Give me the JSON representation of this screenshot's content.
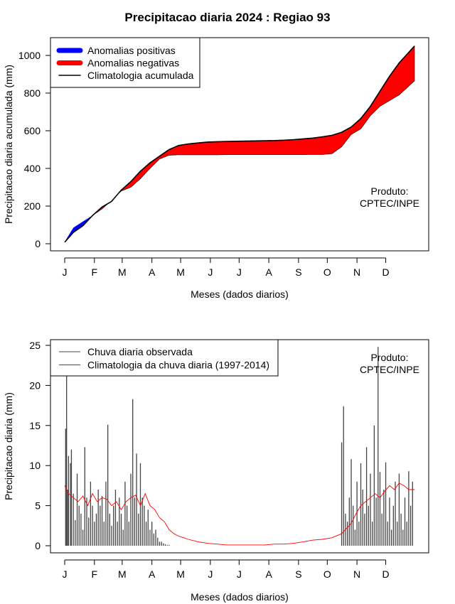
{
  "title": "Precipitacao diaria 2024 : Regiao 93",
  "colors": {
    "positive": "#0000ff",
    "negative": "#ff0000",
    "climatology_cumulative": "#000000",
    "observed_bar": "#444444",
    "climatology_daily": "#ff0000"
  },
  "chart_data": [
    {
      "type": "area",
      "title": "Precipitacao diaria 2024 : Regiao 93",
      "xlabel": "Meses (dados diarios)",
      "ylabel": "Precipitacao diaria acumulada (mm)",
      "ylim": [
        0,
        1100
      ],
      "yticks": [
        0,
        200,
        400,
        600,
        800,
        1000
      ],
      "month_labels": [
        "J",
        "F",
        "M",
        "A",
        "M",
        "J",
        "J",
        "A",
        "S",
        "O",
        "N",
        "D"
      ],
      "month_start_days": [
        1,
        32,
        61,
        92,
        122,
        153,
        183,
        214,
        245,
        275,
        306,
        336
      ],
      "legend": [
        "Anomalias positivas",
        "Anomalias negativas",
        "Climatologia acumulada"
      ],
      "legend_position": "top-left",
      "annotation": [
        "Produto:",
        "CPTEC/INPE"
      ],
      "days": [
        1,
        10,
        20,
        30,
        40,
        50,
        60,
        70,
        80,
        90,
        100,
        110,
        120,
        130,
        140,
        150,
        160,
        170,
        180,
        190,
        200,
        210,
        220,
        230,
        240,
        250,
        260,
        270,
        280,
        290,
        300,
        310,
        320,
        330,
        340,
        350,
        366
      ],
      "climatology_cumulative": [
        8,
        60,
        95,
        150,
        195,
        225,
        285,
        330,
        385,
        430,
        465,
        500,
        522,
        530,
        535,
        540,
        542,
        543,
        544,
        545,
        546,
        547,
        548,
        550,
        553,
        557,
        561,
        568,
        576,
        592,
        620,
        665,
        730,
        810,
        890,
        960,
        1050
      ],
      "observed_cumulative": [
        10,
        85,
        118,
        150,
        185,
        230,
        280,
        300,
        345,
        400,
        450,
        470,
        472,
        472,
        472,
        472,
        472,
        473,
        473,
        473,
        473,
        473,
        473,
        473,
        473,
        473,
        474,
        474,
        478,
        515,
        580,
        610,
        680,
        730,
        760,
        790,
        865
      ]
    },
    {
      "type": "bar",
      "title": "",
      "xlabel": "Meses (dados diarios)",
      "ylabel": "Precipitacao diaria (mm)",
      "ylim": [
        0,
        25
      ],
      "yticks": [
        0,
        5,
        10,
        15,
        20,
        25
      ],
      "month_labels": [
        "J",
        "F",
        "M",
        "A",
        "M",
        "J",
        "J",
        "A",
        "S",
        "O",
        "N",
        "D"
      ],
      "month_start_days": [
        1,
        32,
        61,
        92,
        122,
        153,
        183,
        214,
        245,
        275,
        306,
        336
      ],
      "legend": [
        "Chuva diaria observada",
        "Climatologia da chuva diaria (1997-2014)"
      ],
      "legend_position": "top-left",
      "annotation": [
        "Produto:",
        "CPTEC/INPE"
      ],
      "series": [
        {
          "name": "Chuva diaria observada",
          "type": "bar",
          "x": [
            2,
            3,
            4,
            5,
            7,
            8,
            10,
            12,
            14,
            16,
            18,
            20,
            22,
            24,
            26,
            28,
            30,
            32,
            34,
            36,
            38,
            40,
            42,
            44,
            46,
            48,
            50,
            52,
            54,
            56,
            58,
            60,
            62,
            64,
            66,
            68,
            70,
            72,
            74,
            76,
            78,
            80,
            82,
            84,
            86,
            88,
            90,
            92,
            94,
            96,
            98,
            100,
            102,
            104,
            106,
            108,
            110,
            290,
            292,
            294,
            296,
            298,
            300,
            302,
            304,
            306,
            308,
            310,
            312,
            314,
            316,
            318,
            320,
            322,
            324,
            326,
            328,
            330,
            332,
            334,
            336,
            338,
            340,
            342,
            344,
            346,
            348,
            350,
            352,
            354,
            356,
            358,
            360,
            362,
            364
          ],
          "values": [
            14.6,
            21.5,
            7.0,
            11.2,
            10.3,
            12.0,
            6.5,
            3.2,
            9.0,
            5.0,
            4.0,
            2.0,
            12.3,
            6.0,
            3.5,
            8.0,
            5.0,
            3.0,
            4.0,
            7.0,
            5.0,
            6.2,
            3.0,
            8.0,
            15.1,
            4.0,
            2.5,
            5.0,
            7.0,
            3.0,
            6.0,
            4.0,
            2.0,
            8.0,
            5.0,
            3.0,
            9.0,
            18.3,
            6.0,
            11.5,
            4.0,
            10.3,
            6.0,
            5.0,
            3.0,
            4.5,
            2.0,
            3.0,
            1.5,
            2.0,
            1.0,
            0.5,
            0.5,
            0.3,
            0.2,
            0.1,
            0.1,
            12.9,
            17.4,
            4.0,
            3.0,
            6.0,
            10.8,
            5.0,
            2.0,
            8.0,
            3.0,
            10.3,
            7.0,
            4.0,
            12.3,
            5.0,
            9.0,
            3.0,
            15.0,
            6.0,
            24.8,
            9.2,
            4.0,
            7.0,
            10.4,
            3.0,
            6.0,
            2.0,
            5.0,
            8.0,
            3.0,
            9.0,
            4.0,
            2.0,
            6.0,
            3.0,
            9.3,
            5.0,
            8.0
          ]
        },
        {
          "name": "Climatologia da chuva diaria (1997-2014)",
          "type": "line",
          "x": [
            1,
            5,
            10,
            15,
            20,
            25,
            30,
            35,
            40,
            45,
            50,
            55,
            60,
            65,
            70,
            75,
            80,
            85,
            90,
            95,
            100,
            105,
            110,
            115,
            120,
            130,
            140,
            150,
            160,
            170,
            180,
            190,
            200,
            210,
            220,
            230,
            240,
            250,
            260,
            270,
            280,
            290,
            300,
            305,
            310,
            315,
            320,
            325,
            330,
            335,
            340,
            345,
            350,
            355,
            360,
            366
          ],
          "values": [
            7.5,
            6.5,
            6.0,
            5.5,
            6.2,
            5.0,
            6.5,
            5.5,
            6.0,
            5.8,
            5.0,
            5.5,
            4.5,
            5.5,
            6.0,
            6.3,
            5.0,
            6.5,
            5.0,
            4.5,
            3.5,
            3.0,
            2.0,
            1.5,
            1.2,
            0.8,
            0.5,
            0.3,
            0.2,
            0.1,
            0.1,
            0.1,
            0.1,
            0.1,
            0.2,
            0.2,
            0.3,
            0.5,
            0.7,
            0.8,
            1.0,
            1.5,
            2.8,
            4.0,
            5.0,
            5.5,
            6.0,
            6.5,
            6.0,
            6.8,
            7.5,
            7.0,
            7.8,
            7.5,
            7.0,
            7.0
          ]
        }
      ]
    }
  ]
}
